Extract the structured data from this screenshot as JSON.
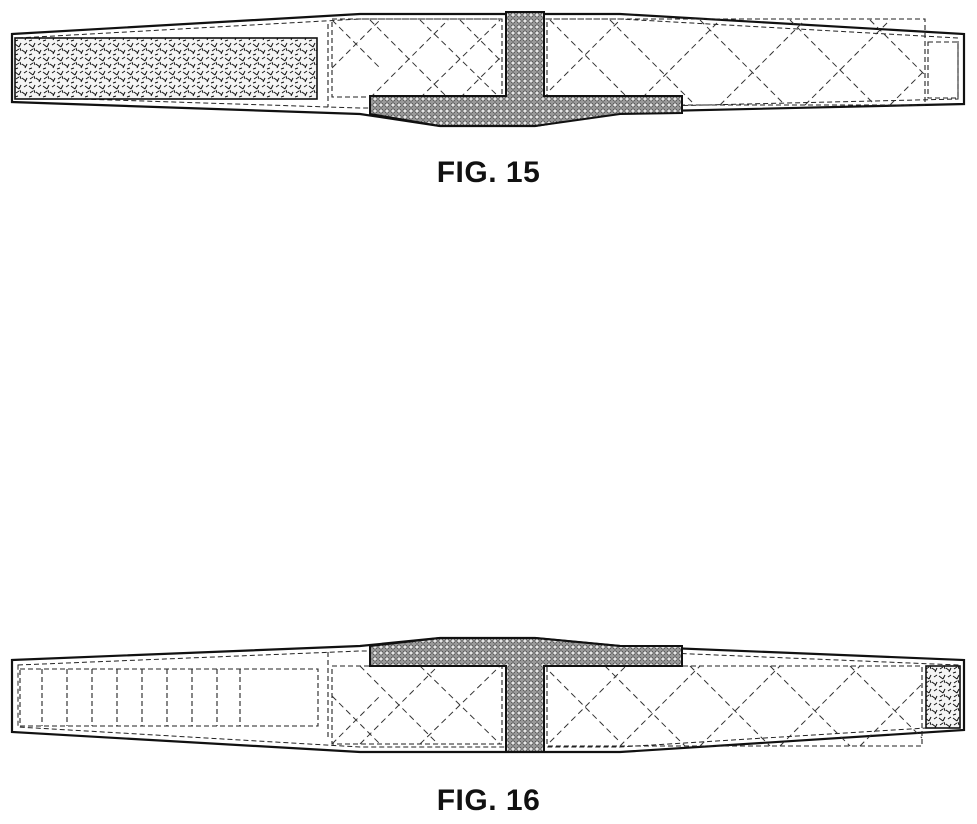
{
  "figures": [
    {
      "id": "fig15",
      "caption": "FIG. 15"
    },
    {
      "id": "fig16",
      "caption": "FIG. 16"
    }
  ]
}
